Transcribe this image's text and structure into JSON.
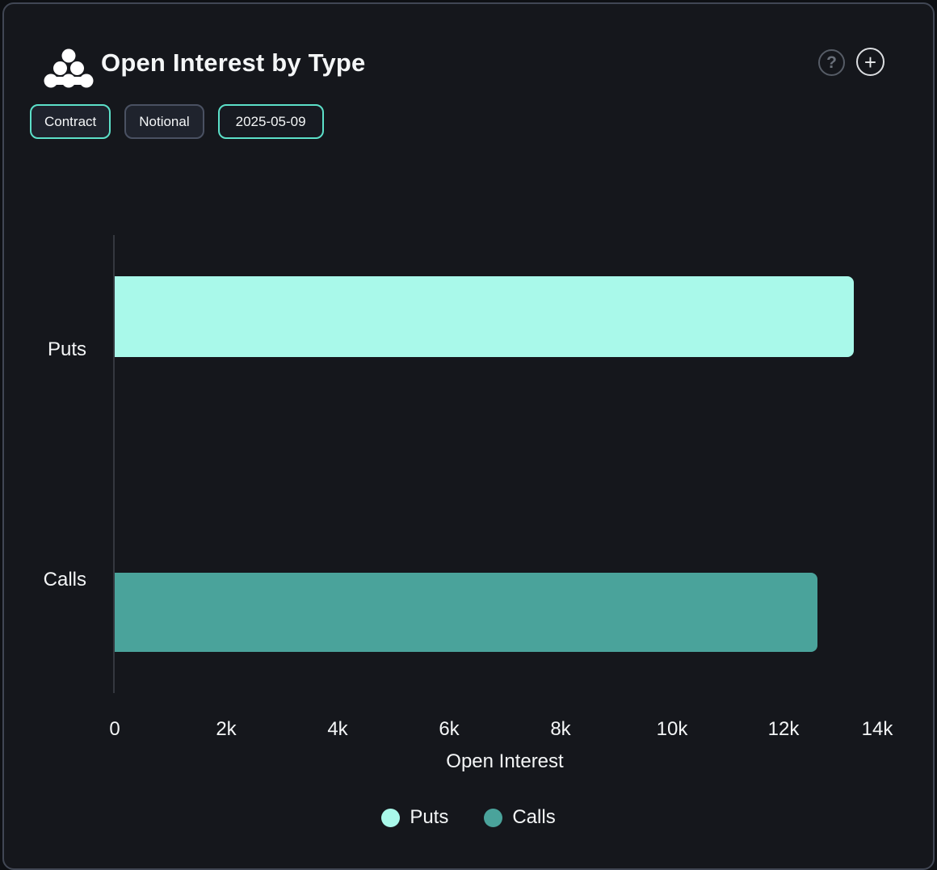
{
  "header": {
    "title": "Open Interest by Type",
    "logo_icon": "dots-pyramid-icon",
    "help_glyph": "?",
    "add_glyph": "+"
  },
  "toolbar": {
    "buttons": [
      {
        "label": "Contract",
        "state": "selected"
      },
      {
        "label": "Notional",
        "state": "unselected"
      },
      {
        "label": "2025-05-09",
        "state": "selected",
        "role": "date-picker"
      }
    ]
  },
  "chart_data": {
    "type": "bar",
    "orientation": "horizontal",
    "title": "Open Interest by Type",
    "xlabel": "Open Interest",
    "ylabel": "",
    "categories": [
      "Puts",
      "Calls"
    ],
    "values": [
      13260,
      12610
    ],
    "colors": [
      "#a9f9ea",
      "#4aa39b"
    ],
    "xlim": [
      0,
      14000
    ],
    "xticks": [
      {
        "value": 0,
        "label": "0"
      },
      {
        "value": 2000,
        "label": "2k"
      },
      {
        "value": 4000,
        "label": "4k"
      },
      {
        "value": 6000,
        "label": "6k"
      },
      {
        "value": 8000,
        "label": "8k"
      },
      {
        "value": 10000,
        "label": "10k"
      },
      {
        "value": 12000,
        "label": "12k"
      },
      {
        "value": 14000,
        "label": "14k"
      }
    ],
    "grid": false,
    "legend": {
      "position": "bottom",
      "items": [
        {
          "label": "Puts",
          "color": "#a9f9ea"
        },
        {
          "label": "Calls",
          "color": "#4aa39b"
        }
      ]
    }
  },
  "theme": {
    "panel_bg": "#15171c",
    "panel_border": "#414754",
    "accent_teal": "#5ce0c9",
    "axis_line": "#34383f",
    "text": "#f4f6f7"
  }
}
